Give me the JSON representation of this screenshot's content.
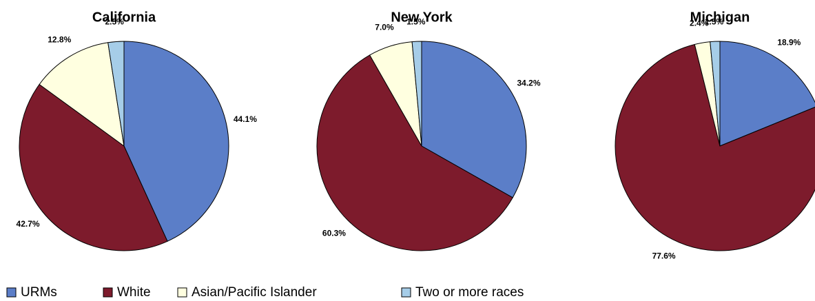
{
  "chart_data": [
    {
      "type": "pie",
      "title": "California",
      "values": [
        44.1,
        42.7,
        12.8,
        2.5
      ],
      "value_labels": [
        "44.1%",
        "42.7%",
        "12.8%",
        "2.5%"
      ]
    },
    {
      "type": "pie",
      "title": "New York",
      "values": [
        34.2,
        60.3,
        7.0,
        1.5
      ],
      "value_labels": [
        "34.2%",
        "60.3%",
        "7.0%",
        "1.5%"
      ]
    },
    {
      "type": "pie",
      "title": "Michigan",
      "values": [
        18.9,
        77.6,
        2.4,
        1.5
      ],
      "value_labels": [
        "18.9%",
        "77.6%",
        "2.4%",
        "1.5%"
      ]
    }
  ],
  "legend": {
    "labels": [
      "URMs",
      "White",
      "Asian/Pacific Islander",
      "Two or more races"
    ],
    "colors": [
      "#5b7ec8",
      "#7d1b2c",
      "#ffffe0",
      "#a6cde8"
    ]
  }
}
